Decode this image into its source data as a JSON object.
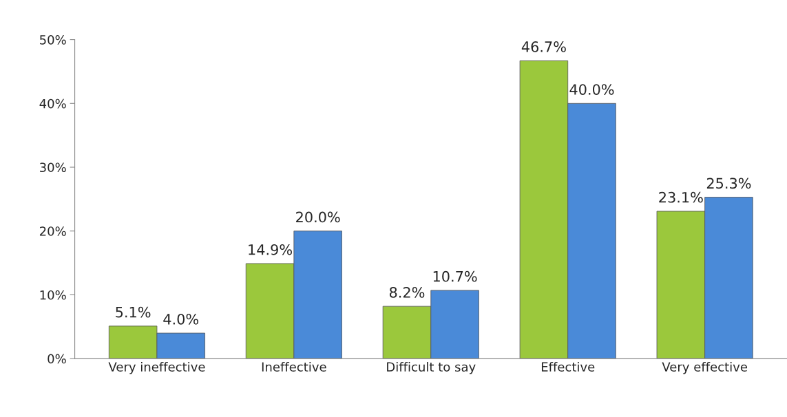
{
  "chart_data": {
    "type": "bar",
    "categories": [
      "Very ineffective",
      "Ineffective",
      "Difficult to say",
      "Effective",
      "Very effective"
    ],
    "series": [
      {
        "color": "#9bc83c",
        "values": [
          5.1,
          14.9,
          8.2,
          46.7,
          23.1
        ],
        "value_labels": [
          "5.1%",
          "14.9%",
          "8.2%",
          "46.7%",
          "23.1%"
        ]
      },
      {
        "color": "#4a8ad8",
        "values": [
          4.0,
          20.0,
          10.7,
          40.0,
          25.3
        ],
        "value_labels": [
          "4.0%",
          "20.0%",
          "10.7%",
          "40.0%",
          "25.3%"
        ]
      }
    ],
    "ylim": [
      0,
      50
    ],
    "yticks": [
      {
        "value": 0,
        "label": "0%"
      },
      {
        "value": 10,
        "label": "10%"
      },
      {
        "value": 20,
        "label": "20%"
      },
      {
        "value": 30,
        "label": "30%"
      },
      {
        "value": 40,
        "label": "40%"
      },
      {
        "value": 50,
        "label": "50%"
      }
    ],
    "grid": false,
    "legend": false
  }
}
